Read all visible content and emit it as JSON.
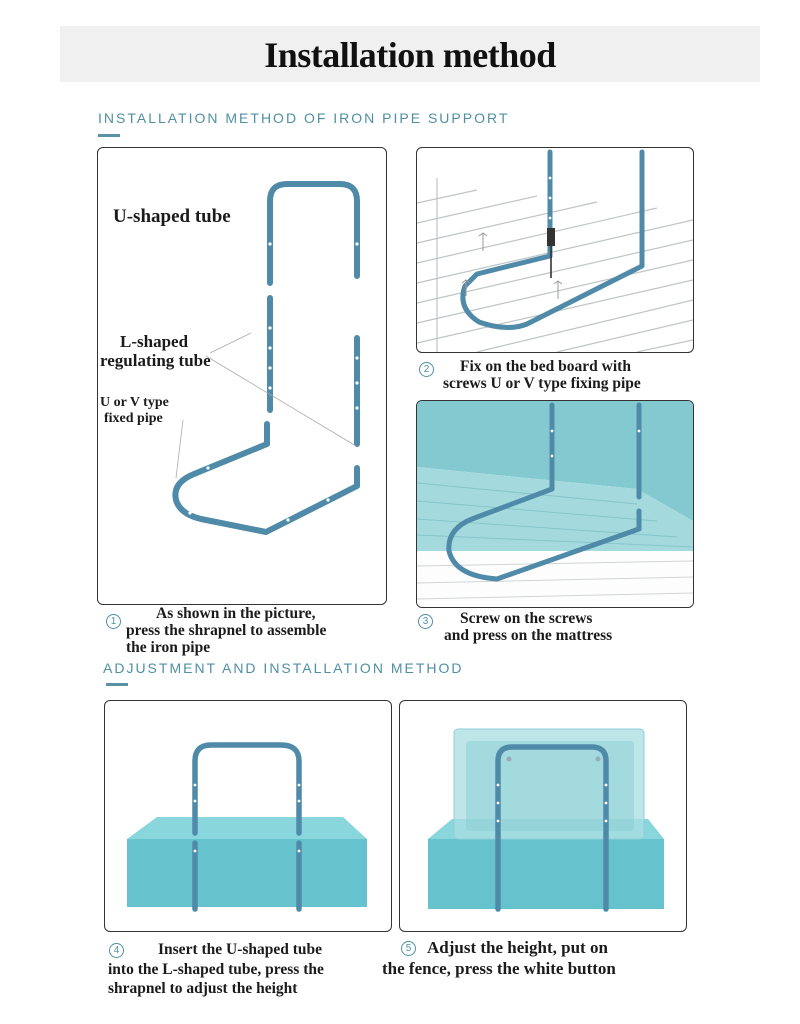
{
  "title": "Installation method",
  "sections": {
    "iron_pipe": "INSTALLATION METHOD OF IRON PIPE SUPPORT",
    "adjustment": "ADJUSTMENT AND INSTALLATION METHOD"
  },
  "diagram_labels": {
    "u_tube": "U-shaped tube",
    "l_tube_1": "L-shaped",
    "l_tube_2": "regulating tube",
    "fixed_1": "U or V type",
    "fixed_2": "fixed pipe"
  },
  "steps": [
    {
      "number": "1",
      "lines": [
        "As shown in the picture,",
        "press the shrapnel to assemble",
        "the iron pipe"
      ]
    },
    {
      "number": "2",
      "lines": [
        "Fix on the bed board with",
        "screws U or V type fixing pipe"
      ]
    },
    {
      "number": "3",
      "lines": [
        "Screw on the screws",
        "and press on the mattress"
      ]
    },
    {
      "number": "4",
      "lines": [
        "Insert the U-shaped tube",
        "into the L-shaped tube, press the",
        "shrapnel to adjust the height"
      ]
    },
    {
      "number": "5",
      "lines": [
        "Adjust the height, put on",
        "the fence, press the white button"
      ]
    }
  ],
  "colors": {
    "pipe": "#4f8aa8",
    "mattress": "#66c2cc",
    "accent": "#5c92a6"
  }
}
